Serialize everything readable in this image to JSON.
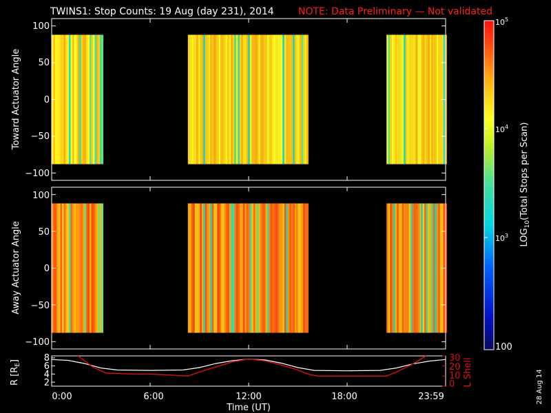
{
  "header": {
    "title": "TWINS1: Stop Counts: 19 Aug (day 231), 2014",
    "note": "NOTE: Data Preliminary — Not validated",
    "side_date": "28 Aug 14"
  },
  "colors": {
    "background": "#000000",
    "axes": "#ffffff",
    "note": "#ff2020",
    "r_line": "#ffffff",
    "lshell_line": "#e01010"
  },
  "colorbar": {
    "label": "LOG10(Total Stops per Scan)",
    "label_main": "LOG",
    "label_sub": "10",
    "label_tail": "(Total Stops per Scan)",
    "tick_labels": [
      "10^5",
      "10^4",
      "10^3",
      "100"
    ],
    "range": [
      100,
      100000
    ],
    "scale": "log",
    "colormap": "rainbow (blue-cyan-green-yellow-orange-red)"
  },
  "chart_data": [
    {
      "type": "heatmap",
      "panel": "toward",
      "ylabel": "Toward Actuator Angle",
      "ylim": [
        -110,
        110
      ],
      "ytick_labels": [
        "100",
        "50",
        "0",
        "−50",
        "−100"
      ],
      "data_angle_range": [
        -88,
        88
      ],
      "xlim": [
        0,
        24
      ],
      "data_intervals_hours": [
        [
          0.0,
          3.1
        ],
        [
          8.3,
          15.6
        ],
        [
          20.4,
          24.0
        ]
      ],
      "dominant_level": "10^4 (yellow-orange), with 10^3-10^4 (cyan-green) stripes"
    },
    {
      "type": "heatmap",
      "panel": "away",
      "ylabel": "Away Actuator Angle",
      "ylim": [
        -110,
        110
      ],
      "ytick_labels": [
        "100",
        "50",
        "0",
        "−50",
        "−100"
      ],
      "data_angle_range": [
        -88,
        88
      ],
      "xlim": [
        0,
        24
      ],
      "data_intervals_hours": [
        [
          0.0,
          3.1
        ],
        [
          8.3,
          15.6
        ],
        [
          20.4,
          24.0
        ]
      ],
      "dominant_level": "10^4-10^5 (orange-red), with 10^3-10^4 (cyan-green) stripes"
    },
    {
      "type": "line",
      "panel": "orbit",
      "ylabel": "R [RE]",
      "ylabel_main": "R [R",
      "ylabel_sub": "E",
      "ylabel_tail": "]",
      "y2label": "L Shell",
      "ylim": [
        1,
        8.5
      ],
      "y2lim": [
        0,
        30
      ],
      "ytick_labels": [
        "8",
        "6",
        "4",
        "2"
      ],
      "y2tick_labels": [
        "30",
        "20",
        "10",
        "0"
      ],
      "xlabel": "Time (UT)",
      "xlim": [
        0,
        24
      ],
      "xtick_labels": [
        "0:00",
        "6:00",
        "12:00",
        "18:00",
        "23:59"
      ],
      "series": [
        {
          "axis": "left",
          "x": [
            0,
            1,
            2,
            3,
            4,
            6,
            8,
            9,
            10,
            11,
            12,
            13,
            14,
            15,
            16,
            18,
            20,
            21,
            22,
            23,
            24
          ],
          "y": [
            7.6,
            7.4,
            6.6,
            5.5,
            5.0,
            4.9,
            5.0,
            5.6,
            6.6,
            7.3,
            7.7,
            7.5,
            6.7,
            5.6,
            4.9,
            4.8,
            4.9,
            5.5,
            6.5,
            7.2,
            7.6
          ]
        },
        {
          "axis": "right",
          "x": [
            1.6,
            2.5,
            3.3,
            5,
            6,
            8.3,
            9,
            10,
            11,
            12,
            13,
            14,
            15,
            15.6,
            16.2,
            18,
            20.4,
            21,
            22,
            22.8
          ],
          "y": [
            31,
            19,
            13,
            12,
            12,
            10,
            14,
            19,
            24,
            27,
            25,
            21,
            16,
            12,
            10,
            10,
            10,
            14,
            22,
            31
          ]
        }
      ]
    }
  ]
}
